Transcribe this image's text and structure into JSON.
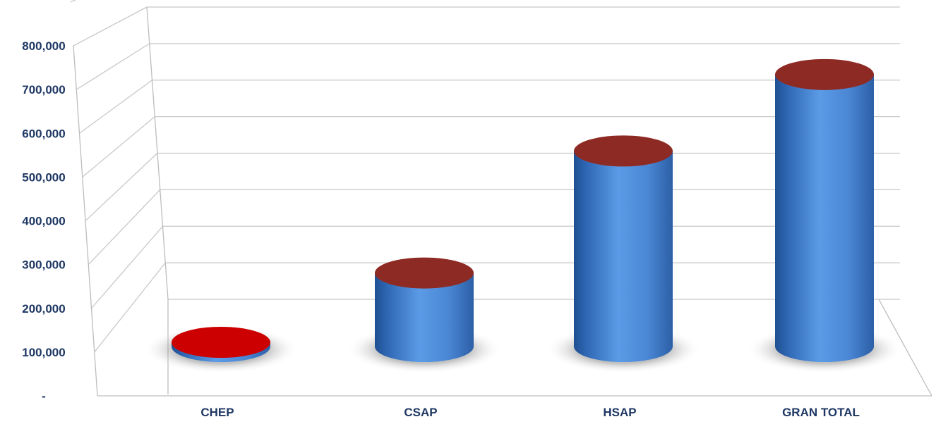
{
  "chart_data": {
    "type": "bar",
    "style": "3d-cylinder",
    "categories": [
      "CHEP",
      "CSAP",
      "HSAP",
      "GRAN TOTAL"
    ],
    "values": [
      8000,
      205000,
      545000,
      758000
    ],
    "ylim": [
      0,
      800000
    ],
    "ytick_values": [
      0,
      100000,
      200000,
      300000,
      400000,
      500000,
      600000,
      700000,
      800000
    ],
    "ytick_labels": [
      "-",
      "100,000",
      "200,000",
      "300,000",
      "400,000",
      "500,000",
      "600,000",
      "700,000",
      "800,000"
    ],
    "grid": true,
    "legend": "none",
    "colors": {
      "body": "#4a86d4",
      "top": "#8e2a24",
      "small_top": "#cc0000",
      "tick_text": "#1f3864",
      "grid": "#c8c8c8"
    }
  }
}
